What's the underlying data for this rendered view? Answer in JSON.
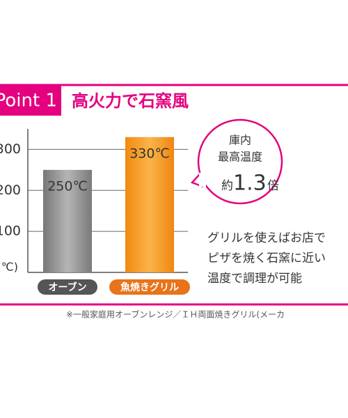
{
  "header": {
    "badge": "Point 1",
    "title": "高火力で石窯風"
  },
  "chart_data": {
    "type": "bar",
    "y_label": "(℃)",
    "categories": [
      "オーブン",
      "魚焼きグリル"
    ],
    "values": [
      250,
      330
    ],
    "value_labels": [
      "250℃",
      "330℃"
    ],
    "colors": [
      "#8e8e8e",
      "#f39a1e"
    ],
    "ylim": [
      0,
      350
    ],
    "yticks": [
      100,
      200,
      300
    ],
    "grid": true
  },
  "callout": {
    "lines": [
      "庫内",
      "最高温度"
    ],
    "prefix": "約",
    "ratio": 1.3,
    "suffix": "倍"
  },
  "description": [
    "グリルを使えばお店で",
    "ピザを焼く石窯に近い",
    "温度で調理が可能"
  ],
  "footnote": "※一般家庭用オーブンレンジ／ＩＨ両面焼きグリル(メーカ"
}
